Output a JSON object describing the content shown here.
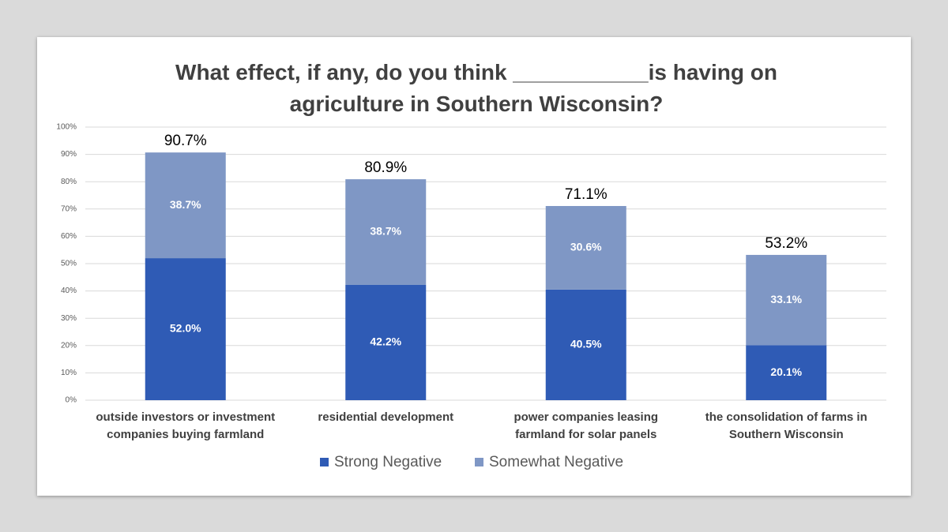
{
  "chart_data": {
    "type": "stacked_bar",
    "title": "What effect, if any, do you think ___________is having on agriculture in Southern Wisconsin?",
    "categories": [
      "outside investors or investment companies buying farmland",
      "residential development",
      "power companies leasing farmland for solar panels",
      "the consolidation of farms in Southern Wisconsin"
    ],
    "series": [
      {
        "name": "Strong Negative",
        "color": "#2f5bb5",
        "values": [
          52.0,
          42.2,
          40.5,
          20.1
        ],
        "value_labels": [
          "52.0%",
          "42.2%",
          "40.5%",
          "20.1%"
        ]
      },
      {
        "name": "Somewhat Negative",
        "color": "#7f97c5",
        "values": [
          38.7,
          38.7,
          30.6,
          33.1
        ],
        "value_labels": [
          "38.7%",
          "38.7%",
          "30.6%",
          "33.1%"
        ]
      }
    ],
    "totals": [
      90.7,
      80.9,
      71.1,
      53.2
    ],
    "total_labels": [
      "90.7%",
      "80.9%",
      "71.1%",
      "53.2%"
    ],
    "ylim": [
      0,
      100
    ],
    "yticks": [
      {
        "value": 0,
        "label": "0%"
      },
      {
        "value": 10,
        "label": "10%"
      },
      {
        "value": 20,
        "label": "20%"
      },
      {
        "value": 30,
        "label": "30%"
      },
      {
        "value": 40,
        "label": "40%"
      },
      {
        "value": 50,
        "label": "50%"
      },
      {
        "value": 60,
        "label": "60%"
      },
      {
        "value": 70,
        "label": "70%"
      },
      {
        "value": 80,
        "label": "80%"
      },
      {
        "value": 90,
        "label": "90%"
      },
      {
        "value": 100,
        "label": "100%"
      }
    ],
    "grid": true,
    "legend": "bottom"
  }
}
